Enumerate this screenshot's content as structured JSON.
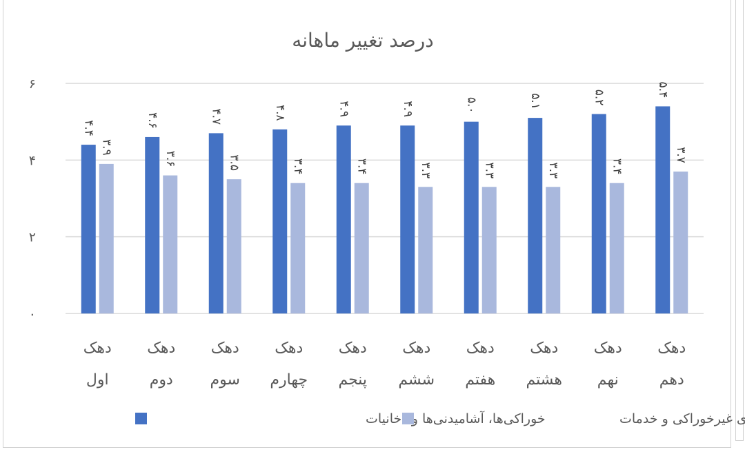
{
  "chart_data": {
    "type": "bar",
    "title": "درصد تغییر ماهانه",
    "categories": [
      [
        "دهک",
        "اول"
      ],
      [
        "دهک",
        "دوم"
      ],
      [
        "دهک",
        "سوم"
      ],
      [
        "دهک",
        "چهارم"
      ],
      [
        "دهک",
        "پنجم"
      ],
      [
        "دهک",
        "ششم"
      ],
      [
        "دهک",
        "هفتم"
      ],
      [
        "دهک",
        "هشتم"
      ],
      [
        "دهک",
        "نهم"
      ],
      [
        "دهک",
        "دهم"
      ]
    ],
    "series": [
      {
        "name": "خوراکی‌ها، آشامیدنی‌ها و دخانیات",
        "color": "#4472C4",
        "values": [
          4.4,
          4.6,
          4.7,
          4.8,
          4.9,
          4.9,
          5.0,
          5.1,
          5.2,
          5.4
        ],
        "labels": [
          "۴.۴",
          "۴.۶",
          "۴.۷",
          "۴.۸",
          "۴.۹",
          "۴.۹",
          "۵.۰",
          "۵.۱",
          "۵.۲",
          "۵.۴"
        ]
      },
      {
        "name": "کالاهای غیرخوراکی و خدمات",
        "color": "#A9B8DD",
        "values": [
          3.9,
          3.6,
          3.5,
          3.4,
          3.4,
          3.3,
          3.3,
          3.3,
          3.4,
          3.7
        ],
        "labels": [
          "۳.۹",
          "۳.۶",
          "۳.۵",
          "۳.۴",
          "۳.۴",
          "۳.۳",
          "۳.۳",
          "۳.۳",
          "۳.۴",
          "۳.۷"
        ]
      }
    ],
    "yticks": [
      0,
      2,
      4,
      6
    ],
    "ytick_labels": [
      "۰",
      "۲",
      "۴",
      "۶"
    ],
    "ylim": [
      0,
      6
    ],
    "grid": true,
    "legend_position": "bottom"
  }
}
